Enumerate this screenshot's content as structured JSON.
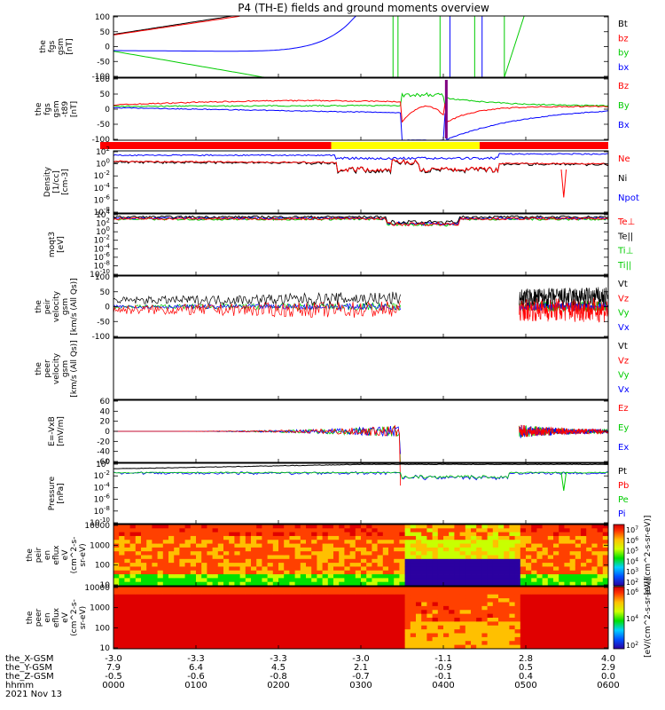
{
  "title": "P4 (TH-E) fields and ground moments overview",
  "colors": {
    "black": "#000000",
    "red": "#ff0000",
    "green": "#00cc00",
    "blue": "#0000ff",
    "yellow": "#ffff00",
    "purple": "#800080"
  },
  "chart_data": [
    {
      "type": "line",
      "panel": "fgs-gsm",
      "ylabel": [
        "the",
        "fgs",
        "gsm",
        "[nT]"
      ],
      "ylim": [
        -100,
        100
      ],
      "yticks": [
        "100",
        "50",
        "0",
        "-50",
        "-100"
      ],
      "legend": [
        {
          "name": "Bt",
          "color": "#000000"
        },
        {
          "name": "bz",
          "color": "#ff0000"
        },
        {
          "name": "by",
          "color": "#00cc00"
        },
        {
          "name": "bx",
          "color": "#0000ff"
        }
      ]
    },
    {
      "type": "line",
      "panel": "fgs-gsm-detrended",
      "ylabel": [
        "the",
        "fgs",
        "gsm",
        "-t89",
        "[nT]"
      ],
      "ylim": [
        -120,
        100
      ],
      "yticks": [
        "100",
        "50",
        "0",
        "-50",
        "-100"
      ],
      "legend": [
        {
          "name": "Bz",
          "color": "#ff0000"
        },
        {
          "name": "By",
          "color": "#00cc00"
        },
        {
          "name": "Bx",
          "color": "#0000ff"
        }
      ]
    },
    {
      "type": "bar",
      "panel": "region-bar",
      "segments": [
        {
          "color": "#ff0000",
          "from": 0,
          "to": 0.44
        },
        {
          "color": "#ffff00",
          "from": 0.44,
          "to": 0.74
        },
        {
          "color": "#ff0000",
          "from": 0.74,
          "to": 1.0
        }
      ]
    },
    {
      "type": "line",
      "panel": "density",
      "ylabel": [
        "Density",
        "[1/cc]",
        "[cm-3]"
      ],
      "scale": "log",
      "yticks": [
        "10^2",
        "10^0",
        "10^-2",
        "10^-4",
        "10^-6",
        "10^-8"
      ],
      "legend": [
        {
          "name": "Ne",
          "color": "#ff0000"
        },
        {
          "name": "Ni",
          "color": "#000000"
        },
        {
          "name": "Npot",
          "color": "#0000ff"
        }
      ]
    },
    {
      "type": "line",
      "panel": "temperature",
      "ylabel": [
        "moqt3",
        "[eV]"
      ],
      "scale": "log",
      "yticks": [
        "10^4",
        "10^2",
        "10^0",
        "10^-2",
        "10^-4",
        "10^-6",
        "10^-8",
        "10^-10"
      ],
      "legend": [
        {
          "name": "Te⊥",
          "color": "#ff0000"
        },
        {
          "name": "Te||",
          "color": "#000000"
        },
        {
          "name": "Ti⊥",
          "color": "#00cc00"
        },
        {
          "name": "Ti||",
          "color": "#00cc00"
        }
      ]
    },
    {
      "type": "line",
      "panel": "velocity-1",
      "ylabel": [
        "the",
        "peir",
        "velocity",
        "gsm",
        "[km/s (All Qs)]"
      ],
      "ylim": [
        -100,
        100
      ],
      "yticks": [
        "100",
        "50",
        "0",
        "-50",
        "-100"
      ],
      "legend": [
        {
          "name": "Vt",
          "color": "#000000"
        },
        {
          "name": "Vz",
          "color": "#ff0000"
        },
        {
          "name": "Vy",
          "color": "#00cc00"
        },
        {
          "name": "Vx",
          "color": "#0000ff"
        }
      ]
    },
    {
      "type": "line",
      "panel": "velocity-2",
      "ylabel": [
        "the",
        "peer",
        "velocity",
        "gsm",
        "[km/s (All Qs)]"
      ],
      "ylim": [
        -100,
        100
      ],
      "yticks": [],
      "legend": [
        {
          "name": "Vt",
          "color": "#000000"
        },
        {
          "name": "Vz",
          "color": "#ff0000"
        },
        {
          "name": "Vy",
          "color": "#00cc00"
        },
        {
          "name": "Vx",
          "color": "#0000ff"
        }
      ]
    },
    {
      "type": "line",
      "panel": "efield",
      "ylabel": [
        "E=-VxB",
        "[mV/m]"
      ],
      "ylim": [
        -60,
        60
      ],
      "yticks": [
        "60",
        "40",
        "20",
        "0",
        "-20",
        "-40",
        "-60"
      ],
      "legend": [
        {
          "name": "Ez",
          "color": "#ff0000"
        },
        {
          "name": "Ey",
          "color": "#00cc00"
        },
        {
          "name": "Ex",
          "color": "#0000ff"
        }
      ]
    },
    {
      "type": "line",
      "panel": "pressure",
      "ylabel": [
        "Pressure",
        "[nPa]"
      ],
      "scale": "log",
      "yticks": [
        "10^0",
        "10^-2",
        "10^-4",
        "10^-6",
        "10^-8",
        "10^-10"
      ],
      "legend": [
        {
          "name": "Pt",
          "color": "#000000"
        },
        {
          "name": "Pb",
          "color": "#ff0000"
        },
        {
          "name": "Pe",
          "color": "#00cc00"
        },
        {
          "name": "Pi",
          "color": "#0000ff"
        }
      ]
    },
    {
      "type": "heatmap",
      "panel": "ion-spectrogram",
      "ylabel": [
        "the",
        "peir",
        "en",
        "eflux",
        "eV",
        "(cm^2-s-",
        "sr-eV)"
      ],
      "yticks": [
        "10000",
        "1000",
        "100",
        "10"
      ],
      "colorbar": {
        "label": "[eV/(cm^2-s-sr-eV)]",
        "ticks": [
          "10^7",
          "10^6",
          "10^5",
          "10^4",
          "10^3",
          "10^2"
        ]
      }
    },
    {
      "type": "heatmap",
      "panel": "electron-spectrogram",
      "ylabel": [
        "the",
        "peer",
        "en",
        "eflux",
        "eV",
        "(cm^2-s-",
        "sr-eV)"
      ],
      "yticks": [
        "10000",
        "1000",
        "100",
        "10"
      ],
      "colorbar": {
        "label": "[eV/(cm^2-s-sr-eV)]",
        "ticks": [
          "10^6",
          "10^4",
          "10^2"
        ]
      }
    }
  ],
  "xaxis": {
    "rows": [
      {
        "label": "the_X-GSM",
        "values": [
          "-3.0",
          "-3.3",
          "-3.3",
          "-3.0",
          "-1.1",
          "2.8",
          "4.0"
        ]
      },
      {
        "label": "the_Y-GSM",
        "values": [
          "7.9",
          "6.4",
          "4.5",
          "2.1",
          "-0.9",
          "0.5",
          "2.9"
        ]
      },
      {
        "label": "the_Z-GSM",
        "values": [
          "-0.5",
          "-0.6",
          "-0.8",
          "-0.7",
          "-0.1",
          "0.4",
          "0.0"
        ]
      },
      {
        "label": "hhmm",
        "values": [
          "0000",
          "0100",
          "0200",
          "0300",
          "0400",
          "0500",
          "0600"
        ]
      }
    ],
    "date": "2021 Nov 13"
  }
}
